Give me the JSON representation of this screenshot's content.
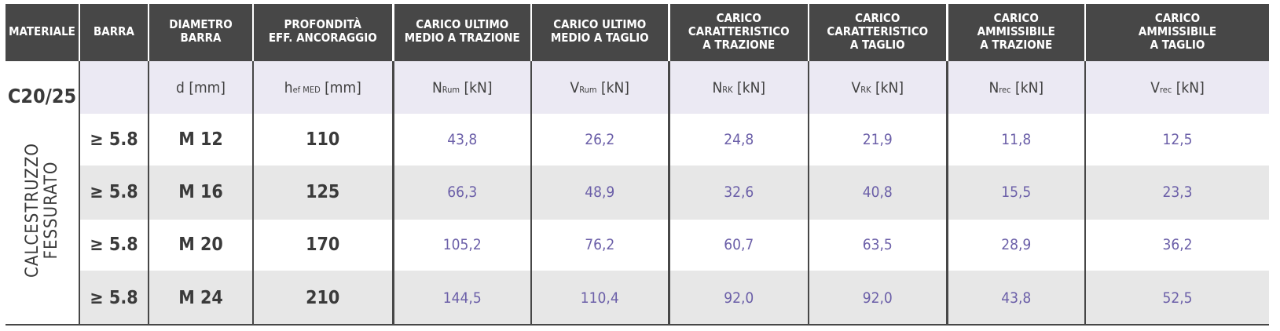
{
  "headers": {
    "materiale": "MATERIALE",
    "barra": "BARRA",
    "diametro": [
      "DIAMETRO",
      "BARRA"
    ],
    "profondita": [
      "PROFONDITÀ",
      "EFF. ANCORAGGIO"
    ],
    "nrum": [
      "CARICO ULTIMO",
      "MEDIO A TRAZIONE"
    ],
    "vrum": [
      "CARICO ULTIMO",
      "MEDIO A TAGLIO"
    ],
    "nrk": [
      "CARICO",
      "CARATTERISTICO",
      "A TRAZIONE"
    ],
    "vrk": [
      "CARICO",
      "CARATTERISTICO",
      "A TAGLIO"
    ],
    "nrec": [
      "CARICO",
      "AMMISSIBILE",
      "A TRAZIONE"
    ],
    "vrec": [
      "CARICO",
      "AMMISSIBILE",
      "A TAGLIO"
    ]
  },
  "units": {
    "d": "d [mm]",
    "hef_main": "h",
    "hef_sub": "ef MED",
    "hef_unit": " [mm]",
    "nrum_main": "N",
    "nrum_sub": "Rum",
    "nrum_unit": " [kN]",
    "vrum_main": "V",
    "vrum_sub": "Rum",
    "vrum_unit": " [kN]",
    "nrk_main": "N",
    "nrk_sub": "RK",
    "nrk_unit": " [kN]",
    "vrk_main": "V",
    "vrk_sub": "RK",
    "vrk_unit": " [kN]",
    "nrec_main": "N",
    "nrec_sub": "rec",
    "nrec_unit": " [kN]",
    "vrec_main": "V",
    "vrec_sub": "rec",
    "vrec_unit": " [kN]"
  },
  "material": {
    "grade": "C20/25",
    "name_line1": "CALCESTRUZZO",
    "name_line2": "FESSURATO"
  },
  "rows": [
    {
      "barra": "≥ 5.8",
      "diametro": "M 12",
      "hef": "110",
      "nrum": "43,8",
      "vrum": "26,2",
      "nrk": "24,8",
      "vrk": "21,9",
      "nrec": "11,8",
      "vrec": "12,5"
    },
    {
      "barra": "≥ 5.8",
      "diametro": "M 16",
      "hef": "125",
      "nrum": "66,3",
      "vrum": "48,9",
      "nrk": "32,6",
      "vrk": "40,8",
      "nrec": "15,5",
      "vrec": "23,3"
    },
    {
      "barra": "≥ 5.8",
      "diametro": "M 20",
      "hef": "170",
      "nrum": "105,2",
      "vrum": "76,2",
      "nrk": "60,7",
      "vrk": "63,5",
      "nrec": "28,9",
      "vrec": "36,2"
    },
    {
      "barra": "≥ 5.8",
      "diametro": "M 24",
      "hef": "210",
      "nrum": "144,5",
      "vrum": "110,4",
      "nrk": "92,0",
      "vrk": "92,0",
      "nrec": "43,8",
      "vrec": "52,5"
    }
  ]
}
